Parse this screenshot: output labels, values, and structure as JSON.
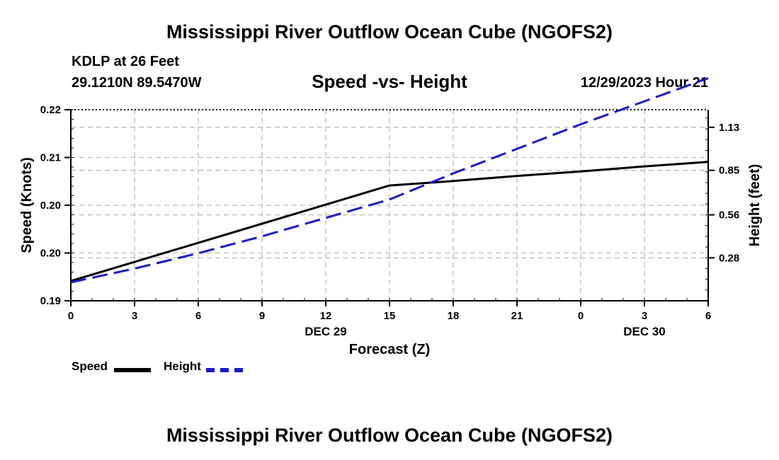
{
  "header": {
    "title": "Mississippi River Outflow Ocean Cube (NGOFS2)",
    "station": "KDLP at 26 Feet",
    "coords": "29.1210N  89.5470W",
    "subtitle": "Speed -vs- Height",
    "datetime": "12/29/2023 Hour 21"
  },
  "footer": {
    "title": "Mississippi River Outflow Ocean Cube (NGOFS2)"
  },
  "legend": {
    "speed_label": "Speed",
    "height_label": "Height"
  },
  "colors": {
    "speed": "#000000",
    "height": "#1a1acc",
    "grid": "#bbbbbb"
  },
  "chart_data": {
    "type": "line",
    "title": "Speed -vs- Height",
    "xlabel": "Forecast (Z)",
    "ylabel": "Speed (Knots)",
    "ylabel_right": "Height (feet)",
    "x": [
      0,
      3,
      6,
      9,
      12,
      15,
      18,
      21,
      24,
      27,
      30
    ],
    "x_tick_labels": [
      "0",
      "3",
      "6",
      "9",
      "12",
      "15",
      "18",
      "21",
      "0",
      "3",
      "6"
    ],
    "x_date_labels": [
      {
        "x": 12,
        "label": "DEC 29"
      },
      {
        "x": 27,
        "label": "DEC 30"
      }
    ],
    "xlim": [
      0,
      30
    ],
    "y_left": {
      "lim": [
        0.19,
        0.22
      ],
      "ticks": [
        0.19,
        0.1975,
        0.205,
        0.2125,
        0.22
      ],
      "tick_labels": [
        "0.19",
        "0.20",
        "0.20",
        "0.21",
        "0.22"
      ]
    },
    "y_right": {
      "lim": [
        0.0,
        1.245
      ],
      "ticks": [
        0.28,
        0.56,
        0.85,
        1.13
      ],
      "tick_labels": [
        "0.28",
        "0.56",
        "0.85",
        "1.13"
      ]
    },
    "series": [
      {
        "name": "Speed",
        "axis": "left",
        "style": "solid",
        "x": [
          0,
          15,
          18,
          21,
          24,
          27,
          30
        ],
        "values": [
          0.1931,
          0.2081,
          0.2088,
          0.2096,
          0.2103,
          0.2111,
          0.2118
        ]
      },
      {
        "name": "Height",
        "axis": "right",
        "style": "dashed",
        "x": [
          0,
          3,
          6,
          9,
          12,
          15,
          18,
          21,
          24,
          27,
          30
        ],
        "values": [
          0.12,
          0.21,
          0.31,
          0.42,
          0.54,
          0.66,
          0.83,
          0.99,
          1.15,
          1.3,
          1.45
        ]
      }
    ]
  }
}
